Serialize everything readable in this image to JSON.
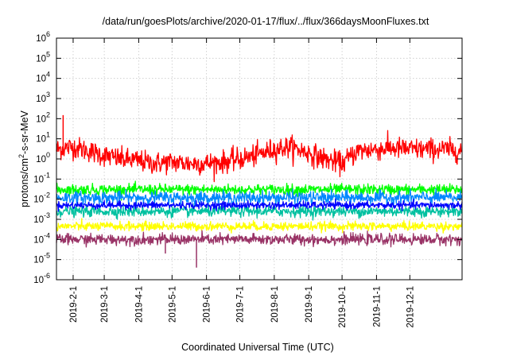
{
  "chart_data": {
    "type": "line",
    "title": "/data/run/goesPlots/archive/2020-01-17/flux/../flux/366daysMoonFluxes.txt",
    "xlabel": "Coordinated Universal Time (UTC)",
    "ylabel": "protons/cm²-s-sr-MeV",
    "ylabel_parts": {
      "pre": "protons/cm",
      "sup": "2",
      "post": "-s-sr-MeV"
    },
    "yscale": "log",
    "ylim": [
      1e-06,
      1000000.0
    ],
    "xlim": [
      "2019-01-17",
      "2020-01-17"
    ],
    "grid": true,
    "y_ticks": [
      {
        "base": "10",
        "exp": "-6",
        "value": 1e-06
      },
      {
        "base": "10",
        "exp": "-5",
        "value": 1e-05
      },
      {
        "base": "10",
        "exp": "-4",
        "value": 0.0001
      },
      {
        "base": "10",
        "exp": "-3",
        "value": 0.001
      },
      {
        "base": "10",
        "exp": "-2",
        "value": 0.01
      },
      {
        "base": "10",
        "exp": "-1",
        "value": 0.1
      },
      {
        "base": "10",
        "exp": "0",
        "value": 1
      },
      {
        "base": "10",
        "exp": "1",
        "value": 10
      },
      {
        "base": "10",
        "exp": "2",
        "value": 100
      },
      {
        "base": "10",
        "exp": "3",
        "value": 1000
      },
      {
        "base": "10",
        "exp": "4",
        "value": 10000
      },
      {
        "base": "10",
        "exp": "5",
        "value": 100000
      },
      {
        "base": "10",
        "exp": "6",
        "value": 1000000
      }
    ],
    "x_ticks": [
      {
        "label": "2019-2-1",
        "date": "2019-02-01"
      },
      {
        "label": "2019-3-1",
        "date": "2019-03-01"
      },
      {
        "label": "2019-4-1",
        "date": "2019-04-01"
      },
      {
        "label": "2019-5-1",
        "date": "2019-05-01"
      },
      {
        "label": "2019-6-1",
        "date": "2019-06-01"
      },
      {
        "label": "2019-7-1",
        "date": "2019-07-01"
      },
      {
        "label": "2019-8-1",
        "date": "2019-08-01"
      },
      {
        "label": "2019-9-1",
        "date": "2019-09-01"
      },
      {
        "label": "2019-10-1",
        "date": "2019-10-01"
      },
      {
        "label": "2019-11-1",
        "date": "2019-11-01"
      },
      {
        "label": "2019-12-1",
        "date": "2019-12-01"
      }
    ],
    "series": [
      {
        "color": "#ff0000",
        "x": [
          "2019-01-17",
          "2019-02-01",
          "2019-02-15",
          "2019-03-01",
          "2019-03-15",
          "2019-04-01",
          "2019-04-15",
          "2019-05-01",
          "2019-05-15",
          "2019-06-01",
          "2019-06-15",
          "2019-07-01",
          "2019-07-15",
          "2019-08-01",
          "2019-08-15",
          "2019-09-01",
          "2019-09-15",
          "2019-10-01",
          "2019-10-15",
          "2019-11-01",
          "2019-11-15",
          "2019-12-01",
          "2019-12-15",
          "2020-01-01",
          "2020-01-17"
        ],
        "median": [
          3,
          4,
          2.5,
          1.5,
          1,
          0.8,
          0.6,
          0.7,
          0.6,
          0.6,
          0.7,
          1,
          1.5,
          3,
          4,
          2,
          1,
          0.6,
          2.5,
          3,
          3.5,
          3,
          3,
          3,
          2.5
        ],
        "scatter_decades": 0.45,
        "spike": {
          "date": "2019-01-23",
          "value": 150
        }
      },
      {
        "color": "#00ff00",
        "median": 0.03,
        "scatter_decades": 0.22
      },
      {
        "color": "#0088ff",
        "median": 0.012,
        "scatter_decades": 0.25
      },
      {
        "color": "#00c0a0",
        "median": 0.0025,
        "scatter_decades": 0.22
      },
      {
        "color": "#0000ff",
        "median": 0.005,
        "scatter_decades": 0.15
      },
      {
        "color": "#ffff00",
        "median": 0.00045,
        "scatter_decades": 0.18
      },
      {
        "color": "#993366",
        "median": 0.0001,
        "scatter_decades": 0.22,
        "dips": [
          {
            "date": "2019-05-23",
            "value": 4e-06
          },
          {
            "date": "2019-04-25",
            "value": 2e-05
          }
        ]
      }
    ]
  }
}
